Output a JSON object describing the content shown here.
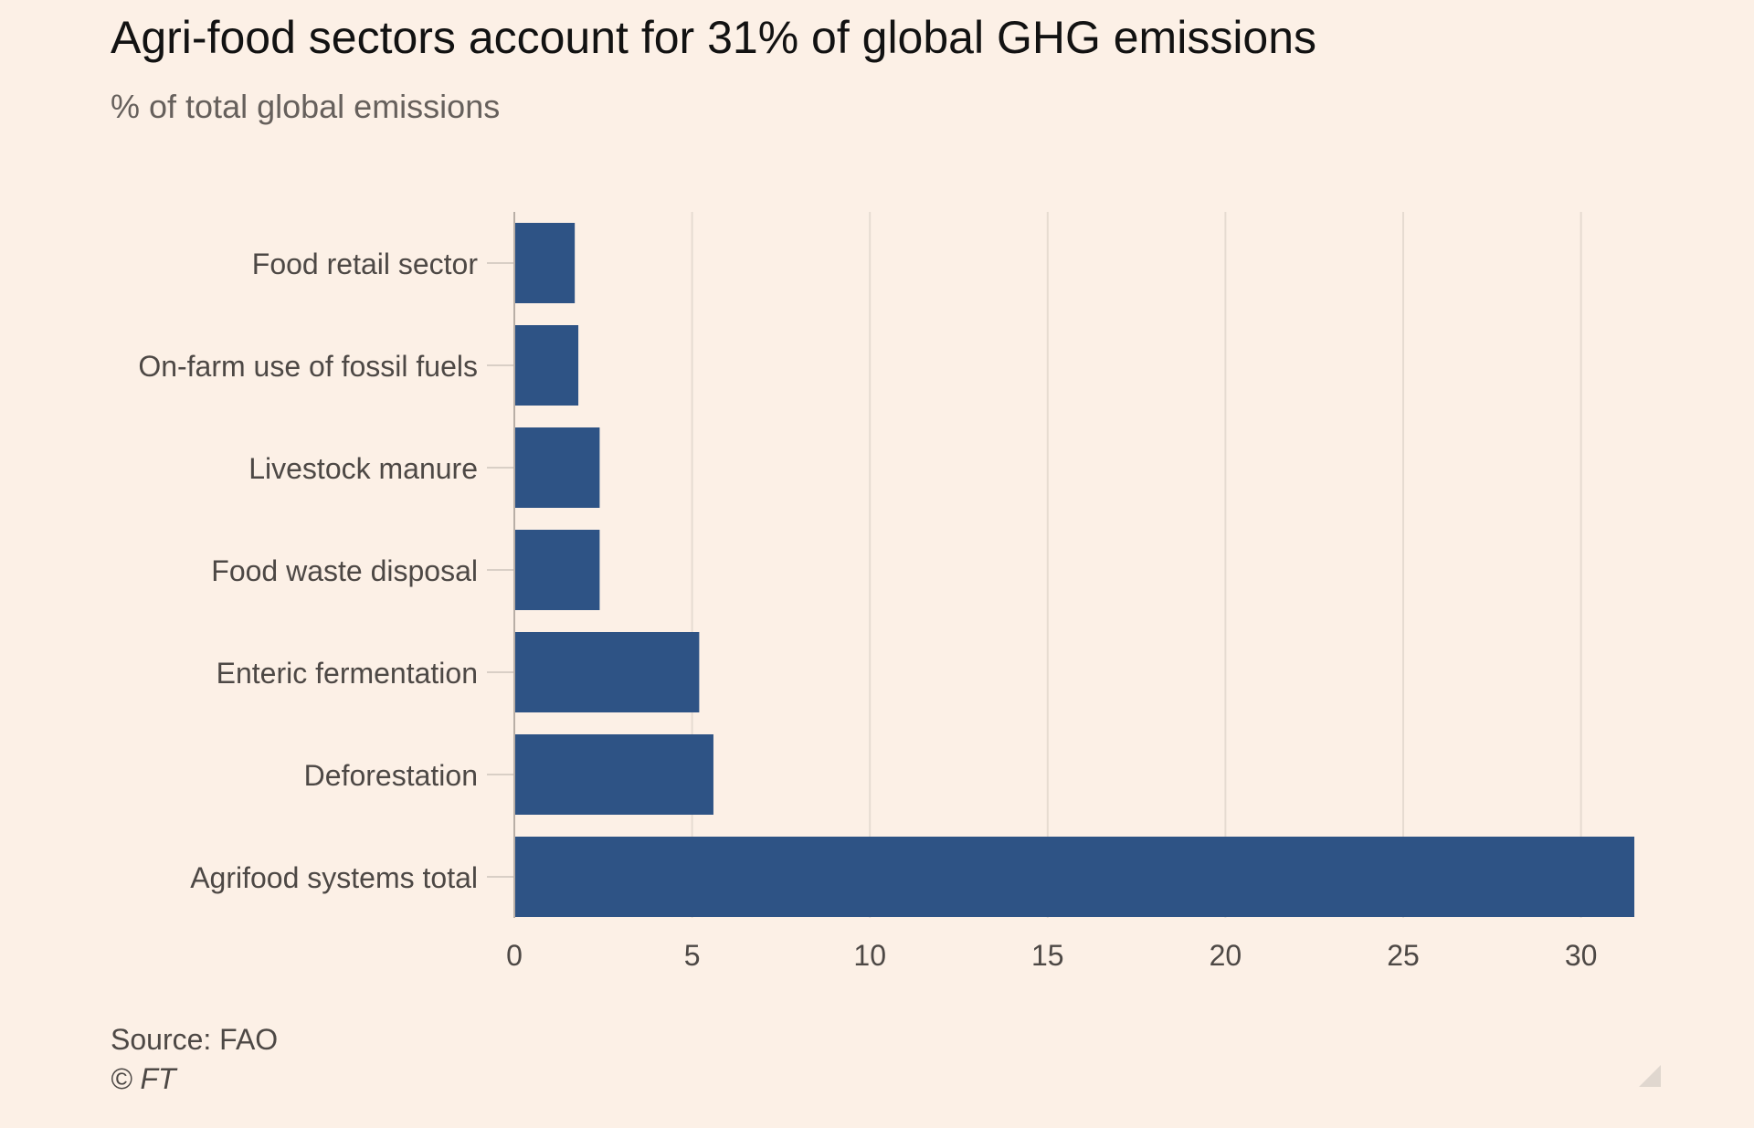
{
  "chart_data": {
    "type": "bar",
    "orientation": "horizontal",
    "title": "Agri-food sectors account for 31% of global GHG emissions",
    "subtitle": "% of total global emissions",
    "categories": [
      "Food retail sector",
      "On-farm use of fossil fuels",
      "Livestock manure",
      "Food waste disposal",
      "Enteric fermentation",
      "Deforestation",
      "Agrifood systems total"
    ],
    "values": [
      1.7,
      1.8,
      2.4,
      2.4,
      5.2,
      5.6,
      31.5
    ],
    "xlim": [
      0,
      31.5
    ],
    "xticks": [
      0,
      5,
      10,
      15,
      20,
      25,
      30
    ],
    "xlabel": "",
    "ylabel": "",
    "grid": "vertical",
    "bar_color": "#2e5385",
    "source": "Source: FAO",
    "credit": "© FT"
  }
}
